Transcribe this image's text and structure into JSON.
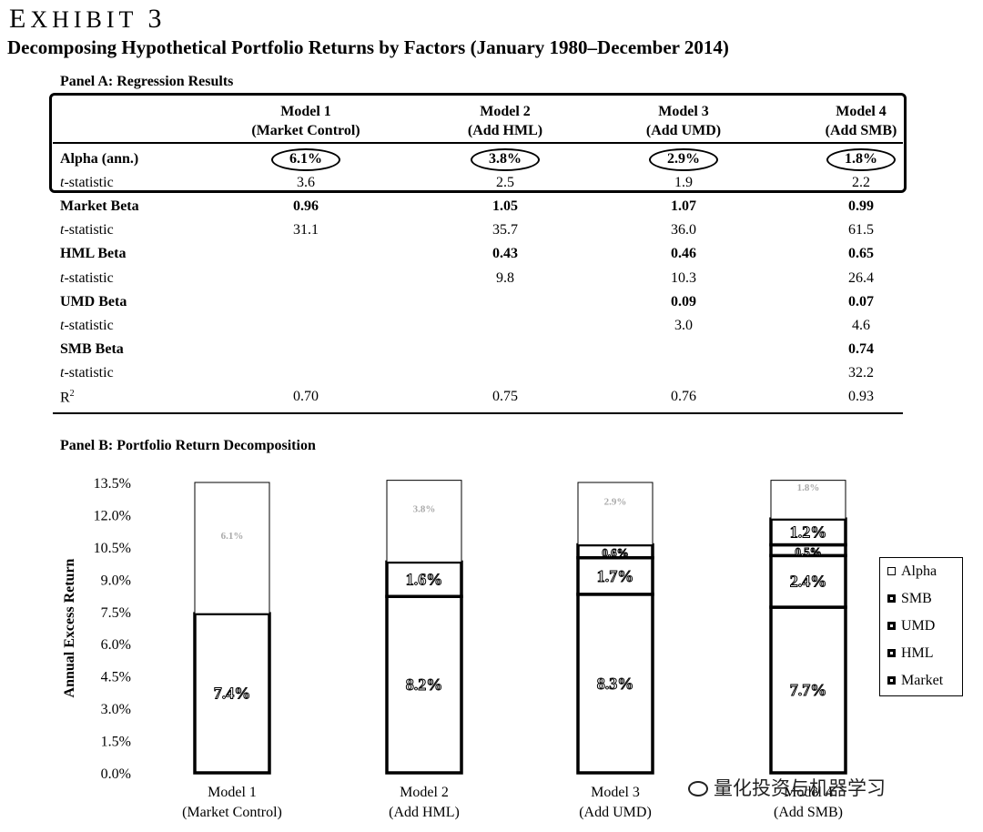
{
  "exhibit": {
    "first": "E",
    "rest": "XHIBIT",
    "num": "3"
  },
  "title": "Decomposing Hypothetical Portfolio Returns by Factors (January 1980–December 2014)",
  "panel_a": {
    "label": "Panel A: Regression Results",
    "models": [
      {
        "name": "Model 1",
        "sub": "(Market Control)"
      },
      {
        "name": "Model 2",
        "sub": "(Add HML)"
      },
      {
        "name": "Model 3",
        "sub": "(Add UMD)"
      },
      {
        "name": "Model 4",
        "sub": "(Add SMB)"
      }
    ],
    "rows": [
      {
        "label": "Alpha (ann.)",
        "label_rest": "",
        "values": [
          "6.1%",
          "3.8%",
          "2.9%",
          "1.8%"
        ]
      },
      {
        "label": "t",
        "label_rest": "-statistic",
        "values": [
          "3.6",
          "2.5",
          "1.9",
          "2.2"
        ]
      },
      {
        "label": "Market Beta",
        "label_rest": "",
        "values": [
          "0.96",
          "1.05",
          "1.07",
          "0.99"
        ]
      },
      {
        "label": "t",
        "label_rest": "-statistic",
        "values": [
          "31.1",
          "35.7",
          "36.0",
          "61.5"
        ]
      },
      {
        "label": "HML Beta",
        "label_rest": "",
        "values": [
          "",
          "0.43",
          "0.46",
          "0.65"
        ]
      },
      {
        "label": "t",
        "label_rest": "-statistic",
        "values": [
          "",
          "9.8",
          "10.3",
          "26.4"
        ]
      },
      {
        "label": "UMD Beta",
        "label_rest": "",
        "values": [
          "",
          "",
          "0.09",
          "0.07"
        ]
      },
      {
        "label": "t",
        "label_rest": "-statistic",
        "values": [
          "",
          "",
          "3.0",
          "4.6"
        ]
      },
      {
        "label": "SMB Beta",
        "label_rest": "",
        "values": [
          "",
          "",
          "",
          "0.74"
        ]
      },
      {
        "label": "t",
        "label_rest": "-statistic",
        "values": [
          "",
          "",
          "",
          "32.2"
        ]
      },
      {
        "label": "R",
        "label_rest": "2",
        "values": [
          "0.70",
          "0.75",
          "0.76",
          "0.93"
        ]
      }
    ]
  },
  "panel_b": {
    "label": "Panel B: Portfolio Return Decomposition"
  },
  "chart_data": {
    "type": "bar",
    "stacked": true,
    "ylabel": "Annual Excess Return",
    "ylim": [
      0,
      13.5
    ],
    "yticks": [
      "0.0%",
      "1.5%",
      "3.0%",
      "4.5%",
      "6.0%",
      "7.5%",
      "9.0%",
      "10.5%",
      "12.0%",
      "13.5%"
    ],
    "categories": [
      {
        "name": "Model 1",
        "sub": "(Market Control)"
      },
      {
        "name": "Model 2",
        "sub": "(Add HML)"
      },
      {
        "name": "Model 3",
        "sub": "(Add UMD)"
      },
      {
        "name": "Model 4",
        "sub": "(Add SMB)"
      }
    ],
    "series": [
      {
        "name": "Market",
        "values": [
          7.4,
          8.2,
          8.3,
          7.7
        ],
        "labels": [
          "7.4%",
          "8.2%",
          "8.3%",
          "7.7%"
        ]
      },
      {
        "name": "HML",
        "values": [
          0,
          1.6,
          1.7,
          2.4
        ],
        "labels": [
          "",
          "1.6%",
          "1.7%",
          "2.4%"
        ]
      },
      {
        "name": "UMD",
        "values": [
          0,
          0,
          0.6,
          0.5
        ],
        "labels": [
          "",
          "",
          "0.6%",
          "0.5%"
        ]
      },
      {
        "name": "SMB",
        "values": [
          0,
          0,
          0,
          1.2
        ],
        "labels": [
          "",
          "",
          "",
          "1.2%"
        ]
      },
      {
        "name": "Alpha",
        "values": [
          6.1,
          3.8,
          2.9,
          1.8
        ],
        "labels": [
          "6.1%",
          "3.8%",
          "2.9%",
          "1.8%"
        ]
      }
    ],
    "legend": [
      "Alpha",
      "SMB",
      "UMD",
      "HML",
      "Market"
    ],
    "legend_position": "right"
  },
  "watermark": "量化投资与机器学习"
}
